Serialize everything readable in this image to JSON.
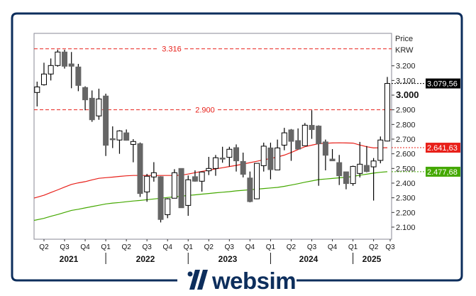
{
  "chart_data": {
    "type": "candlestick",
    "title": "",
    "ylabel": [
      "Price",
      "KRW"
    ],
    "ylim": [
      2050,
      3420
    ],
    "grid": false,
    "months": [
      "2021-03",
      "2021-04",
      "2021-05",
      "2021-06",
      "2021-07",
      "2021-08",
      "2021-09",
      "2021-10",
      "2021-11",
      "2021-12",
      "2022-01",
      "2022-02",
      "2022-03",
      "2022-04",
      "2022-05",
      "2022-06",
      "2022-07",
      "2022-08",
      "2022-09",
      "2022-10",
      "2022-11",
      "2022-12",
      "2023-01",
      "2023-02",
      "2023-03",
      "2023-04",
      "2023-05",
      "2023-06",
      "2023-07",
      "2023-08",
      "2023-09",
      "2023-10",
      "2023-11",
      "2023-12",
      "2024-01",
      "2024-02",
      "2024-03",
      "2024-04",
      "2024-05",
      "2024-06",
      "2024-07",
      "2024-08",
      "2024-09",
      "2024-10",
      "2024-11",
      "2024-12",
      "2025-01",
      "2025-02",
      "2025-03",
      "2025-04",
      "2025-05",
      "2025-06"
    ],
    "ohlc": [
      [
        3018,
        3092,
        2923,
        3056
      ],
      [
        3071,
        3221,
        3065,
        3144
      ],
      [
        3144,
        3250,
        3100,
        3202
      ],
      [
        3202,
        3310,
        3194,
        3294
      ],
      [
        3294,
        3310,
        3181,
        3197
      ],
      [
        3213,
        3294,
        3047,
        3197
      ],
      [
        3192,
        3213,
        3027,
        3066
      ],
      [
        3052,
        3060,
        2897,
        2968
      ],
      [
        2979,
        3032,
        2818,
        2832
      ],
      [
        2858,
        3044,
        2832,
        2974
      ],
      [
        2994,
        3010,
        2585,
        2658
      ],
      [
        2703,
        2787,
        2639,
        2697
      ],
      [
        2694,
        2761,
        2600,
        2756
      ],
      [
        2743,
        2766,
        2690,
        2692
      ],
      [
        2664,
        2700,
        2542,
        2684
      ],
      [
        2669,
        2677,
        2306,
        2329
      ],
      [
        2340,
        2463,
        2273,
        2447
      ],
      [
        2442,
        2543,
        2410,
        2471
      ],
      [
        2444,
        2447,
        2132,
        2152
      ],
      [
        2185,
        2297,
        2161,
        2293
      ],
      [
        2297,
        2495,
        2297,
        2471
      ],
      [
        2500,
        2500,
        2232,
        2232
      ],
      [
        2248,
        2452,
        2177,
        2423
      ],
      [
        2444,
        2487,
        2410,
        2413
      ],
      [
        2413,
        2479,
        2342,
        2476
      ],
      [
        2484,
        2579,
        2455,
        2500
      ],
      [
        2500,
        2592,
        2450,
        2573
      ],
      [
        2571,
        2648,
        2539,
        2564
      ],
      [
        2576,
        2648,
        2513,
        2631
      ],
      [
        2642,
        2664,
        2479,
        2552
      ],
      [
        2548,
        2608,
        2439,
        2460
      ],
      [
        2435,
        2479,
        2269,
        2274
      ],
      [
        2293,
        2535,
        2290,
        2535
      ],
      [
        2519,
        2676,
        2479,
        2652
      ],
      [
        2640,
        2676,
        2426,
        2492
      ],
      [
        2490,
        2697,
        2490,
        2640
      ],
      [
        2659,
        2777,
        2624,
        2743
      ],
      [
        2763,
        2769,
        2552,
        2685
      ],
      [
        2690,
        2773,
        2632,
        2632
      ],
      [
        2655,
        2810,
        2655,
        2795
      ],
      [
        2794,
        2897,
        2702,
        2765
      ],
      [
        2789,
        2794,
        2382,
        2668
      ],
      [
        2681,
        2697,
        2487,
        2590
      ],
      [
        2564,
        2632,
        2552,
        2552
      ],
      [
        2540,
        2592,
        2387,
        2450
      ],
      [
        2477,
        2477,
        2358,
        2397
      ],
      [
        2397,
        2519,
        2382,
        2514
      ],
      [
        2466,
        2681,
        2439,
        2529
      ],
      [
        2521,
        2653,
        2474,
        2479
      ],
      [
        2511,
        2571,
        2281,
        2551
      ],
      [
        2555,
        2718,
        2535,
        2694
      ],
      [
        2687,
        3124,
        2684,
        3079.56
      ]
    ],
    "moving_averages": [
      {
        "color": "#e8201a",
        "last_label": "2.641,63",
        "values": [
          2298,
          2317,
          2336,
          2354,
          2373,
          2391,
          2402,
          2410,
          2422,
          2433,
          2437,
          2441,
          2446,
          2450,
          2452,
          2452,
          2452,
          2452,
          2452,
          2452,
          2452,
          2454,
          2462,
          2471,
          2480,
          2488,
          2497,
          2505,
          2513,
          2521,
          2530,
          2540,
          2549,
          2559,
          2568,
          2578,
          2591,
          2609,
          2629,
          2648,
          2659,
          2669,
          2672,
          2674,
          2675,
          2674,
          2673,
          2660,
          2648,
          2640,
          2641,
          2641.63
        ]
      },
      {
        "color": "#44a800",
        "last_label": "2.477,68",
        "values": [
          2146,
          2160,
          2174,
          2186,
          2200,
          2214,
          2222,
          2231,
          2240,
          2249,
          2258,
          2264,
          2268,
          2273,
          2278,
          2282,
          2287,
          2292,
          2297,
          2302,
          2306,
          2311,
          2316,
          2320,
          2325,
          2329,
          2334,
          2338,
          2342,
          2347,
          2351,
          2355,
          2359,
          2363,
          2367,
          2371,
          2378,
          2387,
          2396,
          2406,
          2415,
          2424,
          2428,
          2432,
          2436,
          2439,
          2446,
          2454,
          2461,
          2468,
          2474,
          2477.68
        ]
      }
    ],
    "last_price_label": "3.079,56",
    "horizontal_lines": [
      {
        "value": 3316,
        "label": "3.316",
        "color": "#e8201a"
      },
      {
        "value": 2900,
        "label": "2.900",
        "color": "#e8201a"
      }
    ],
    "y_ticks": [
      {
        "value": 3200,
        "label": "3.200"
      },
      {
        "value": 3100,
        "label": "3.100"
      },
      {
        "value": 3000,
        "label": "3.000",
        "bold": true
      },
      {
        "value": 2900,
        "label": "2.900"
      },
      {
        "value": 2800,
        "label": "2.800"
      },
      {
        "value": 2700,
        "label": "2.700"
      },
      {
        "value": 2600,
        "label": "2.600"
      },
      {
        "value": 2500,
        "label": "2.500"
      },
      {
        "value": 2400,
        "label": "2.400"
      },
      {
        "value": 2300,
        "label": "2.300"
      },
      {
        "value": 2200,
        "label": "2.200"
      },
      {
        "value": 2100,
        "label": "2.100"
      }
    ],
    "quarters": [
      {
        "month": "2021-04",
        "label": "Q2"
      },
      {
        "month": "2021-07",
        "label": "Q3"
      },
      {
        "month": "2021-10",
        "label": "Q4"
      },
      {
        "month": "2022-01",
        "label": "Q1"
      },
      {
        "month": "2022-04",
        "label": "Q2"
      },
      {
        "month": "2022-07",
        "label": "Q3"
      },
      {
        "month": "2022-10",
        "label": "Q4"
      },
      {
        "month": "2023-01",
        "label": "Q1"
      },
      {
        "month": "2023-04",
        "label": "Q2"
      },
      {
        "month": "2023-07",
        "label": "Q3"
      },
      {
        "month": "2023-10",
        "label": "Q4"
      },
      {
        "month": "2024-01",
        "label": "Q1"
      },
      {
        "month": "2024-04",
        "label": "Q2"
      },
      {
        "month": "2024-07",
        "label": "Q3"
      },
      {
        "month": "2024-10",
        "label": "Q4"
      },
      {
        "month": "2025-01",
        "label": "Q1"
      },
      {
        "month": "2025-04",
        "label": "Q2"
      },
      {
        "month": "2025-07",
        "label": "Q3"
      }
    ],
    "years": [
      "2021",
      "2022",
      "2023",
      "2024",
      "2025"
    ],
    "colors": {
      "up_body": "#ffffff",
      "down_body": "#666666",
      "frame": "#0d2e5c"
    }
  },
  "branding": {
    "logo_text": "websim"
  }
}
